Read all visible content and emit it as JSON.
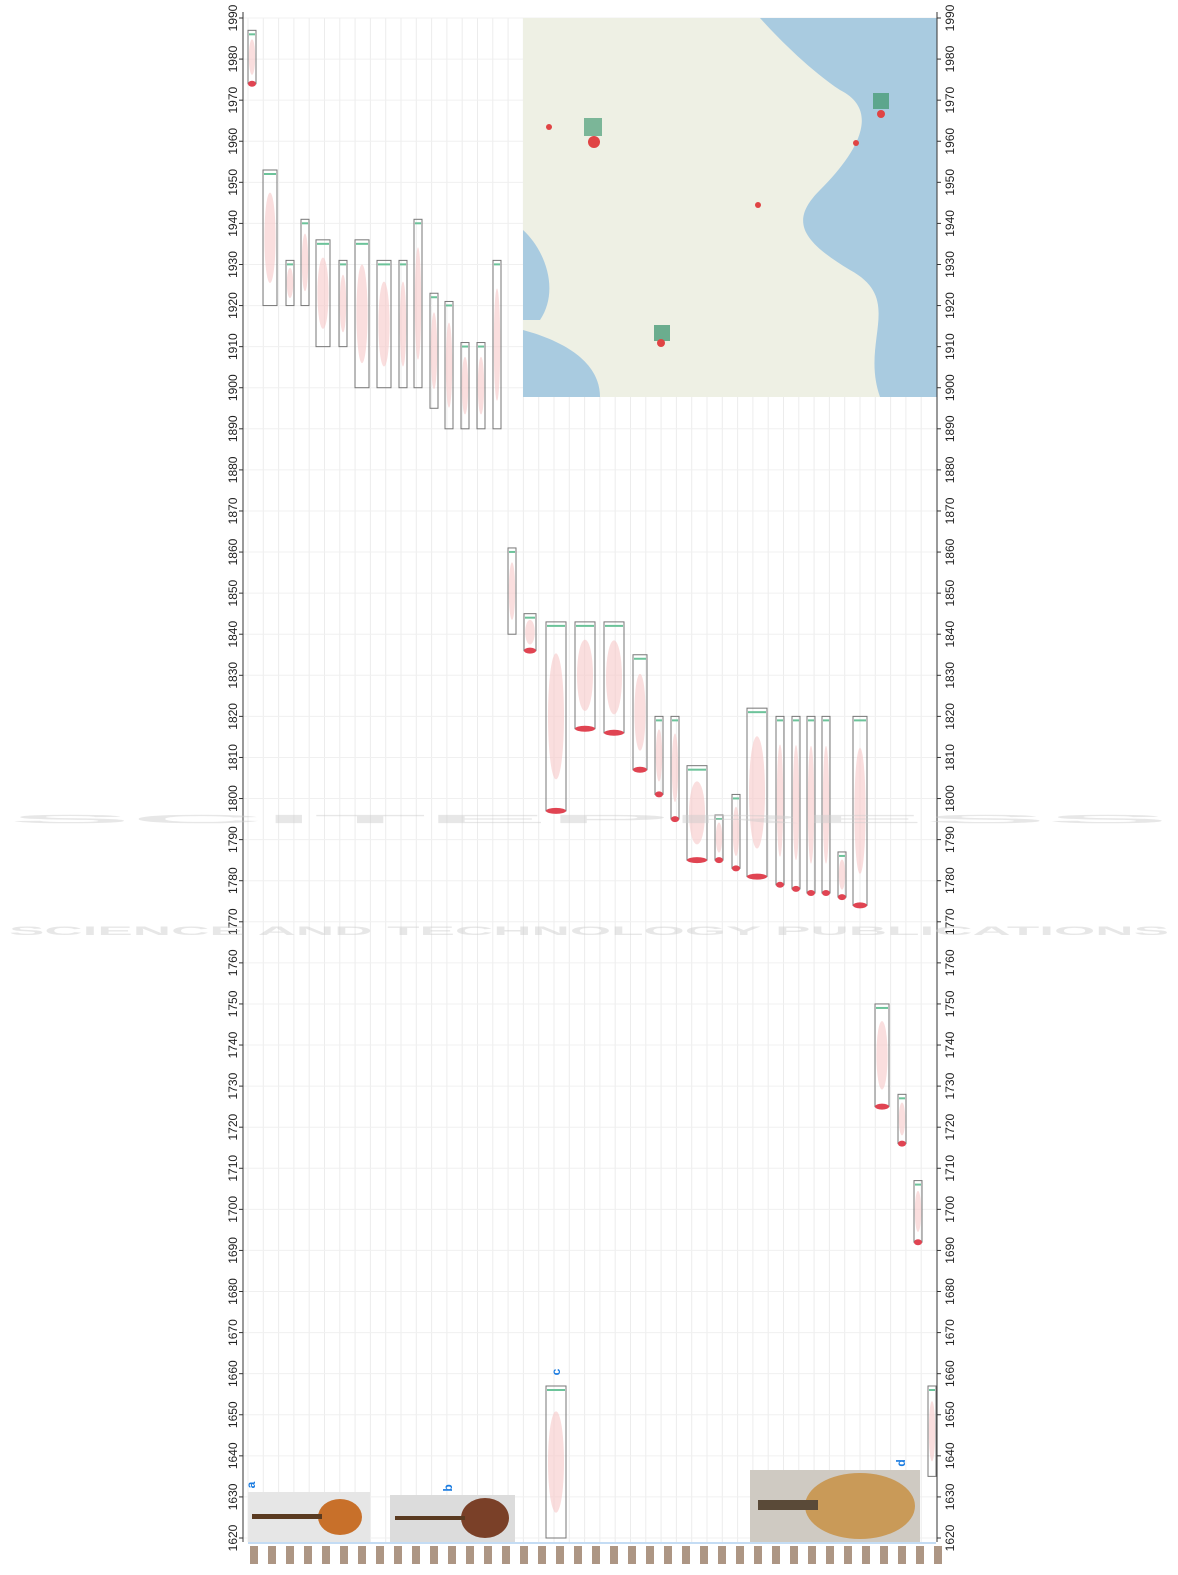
{
  "chart_data": {
    "type": "timeline",
    "ylim": [
      1620,
      1990
    ],
    "yticks": [
      1620,
      1630,
      1640,
      1650,
      1660,
      1670,
      1680,
      1690,
      1700,
      1710,
      1720,
      1730,
      1740,
      1750,
      1760,
      1770,
      1780,
      1790,
      1800,
      1810,
      1820,
      1830,
      1840,
      1850,
      1860,
      1870,
      1880,
      1890,
      1900,
      1910,
      1920,
      1930,
      1940,
      1950,
      1960,
      1970,
      1980,
      1990
    ],
    "grid": true,
    "items": [
      {
        "range": [
          1974,
          1987
        ]
      },
      {
        "range": [
          1920,
          1953
        ]
      },
      {
        "range": [
          1920,
          1931
        ]
      },
      {
        "range": [
          1920,
          1941
        ]
      },
      {
        "range": [
          1910,
          1936
        ]
      },
      {
        "range": [
          1910,
          1931
        ]
      },
      {
        "range": [
          1900,
          1936
        ]
      },
      {
        "range": [
          1900,
          1931
        ]
      },
      {
        "range": [
          1900,
          1931
        ]
      },
      {
        "range": [
          1900,
          1941
        ]
      },
      {
        "range": [
          1895,
          1923
        ]
      },
      {
        "range": [
          1890,
          1921
        ]
      },
      {
        "range": [
          1890,
          1911
        ]
      },
      {
        "range": [
          1890,
          1911
        ]
      },
      {
        "range": [
          1890,
          1931
        ]
      },
      {
        "range": [
          1840,
          1861
        ]
      },
      {
        "range": [
          1836,
          1845
        ]
      },
      {
        "range": [
          1797,
          1843
        ]
      },
      {
        "range": [
          1620,
          1657
        ]
      },
      {
        "range": [
          1817,
          1843
        ]
      },
      {
        "range": [
          1816,
          1843
        ]
      },
      {
        "range": [
          1807,
          1835
        ]
      },
      {
        "range": [
          1801,
          1820
        ]
      },
      {
        "range": [
          1795,
          1820
        ]
      },
      {
        "range": [
          1785,
          1808
        ]
      },
      {
        "range": [
          1785,
          1796
        ]
      },
      {
        "range": [
          1783,
          1801
        ]
      },
      {
        "range": [
          1781,
          1822
        ]
      },
      {
        "range": [
          1779,
          1820
        ]
      },
      {
        "range": [
          1778,
          1820
        ]
      },
      {
        "range": [
          1777,
          1820
        ]
      },
      {
        "range": [
          1777,
          1820
        ]
      },
      {
        "range": [
          1776,
          1787
        ]
      },
      {
        "range": [
          1774,
          1820
        ]
      },
      {
        "range": [
          1725,
          1750
        ]
      },
      {
        "range": [
          1716,
          1728
        ]
      },
      {
        "range": [
          1692,
          1707
        ]
      },
      {
        "range": [
          1635,
          1657
        ]
      }
    ],
    "panel_labels": [
      "a",
      "b",
      "c",
      "d"
    ]
  },
  "watermark": {
    "title": "SCITEPRESS",
    "subtitle": "SCIENCE AND TECHNOLOGY PUBLICATIONS"
  }
}
